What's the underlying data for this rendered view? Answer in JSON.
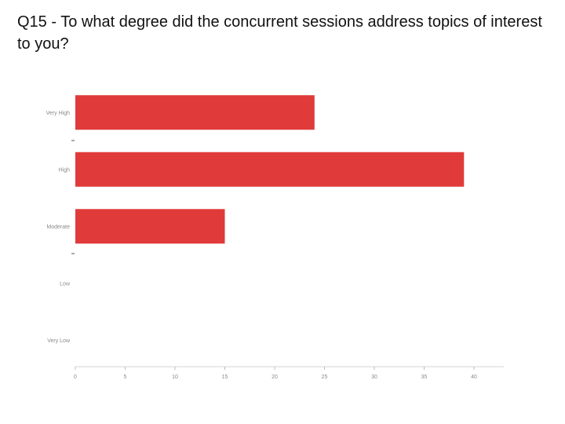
{
  "page": {
    "title": "Q15 - To what degree did the concurrent sessions address topics of interest to you?"
  },
  "chart_data": {
    "type": "bar",
    "orientation": "horizontal",
    "categories": [
      "Very High",
      "High",
      "Moderate",
      "Low",
      "Very Low"
    ],
    "values": [
      24,
      39,
      15,
      0,
      0
    ],
    "xlim": [
      0,
      42
    ],
    "xticks": [
      0,
      5,
      10,
      15,
      20,
      25,
      30,
      35,
      40
    ],
    "grid": false,
    "bar_color": "#e03a3a"
  }
}
